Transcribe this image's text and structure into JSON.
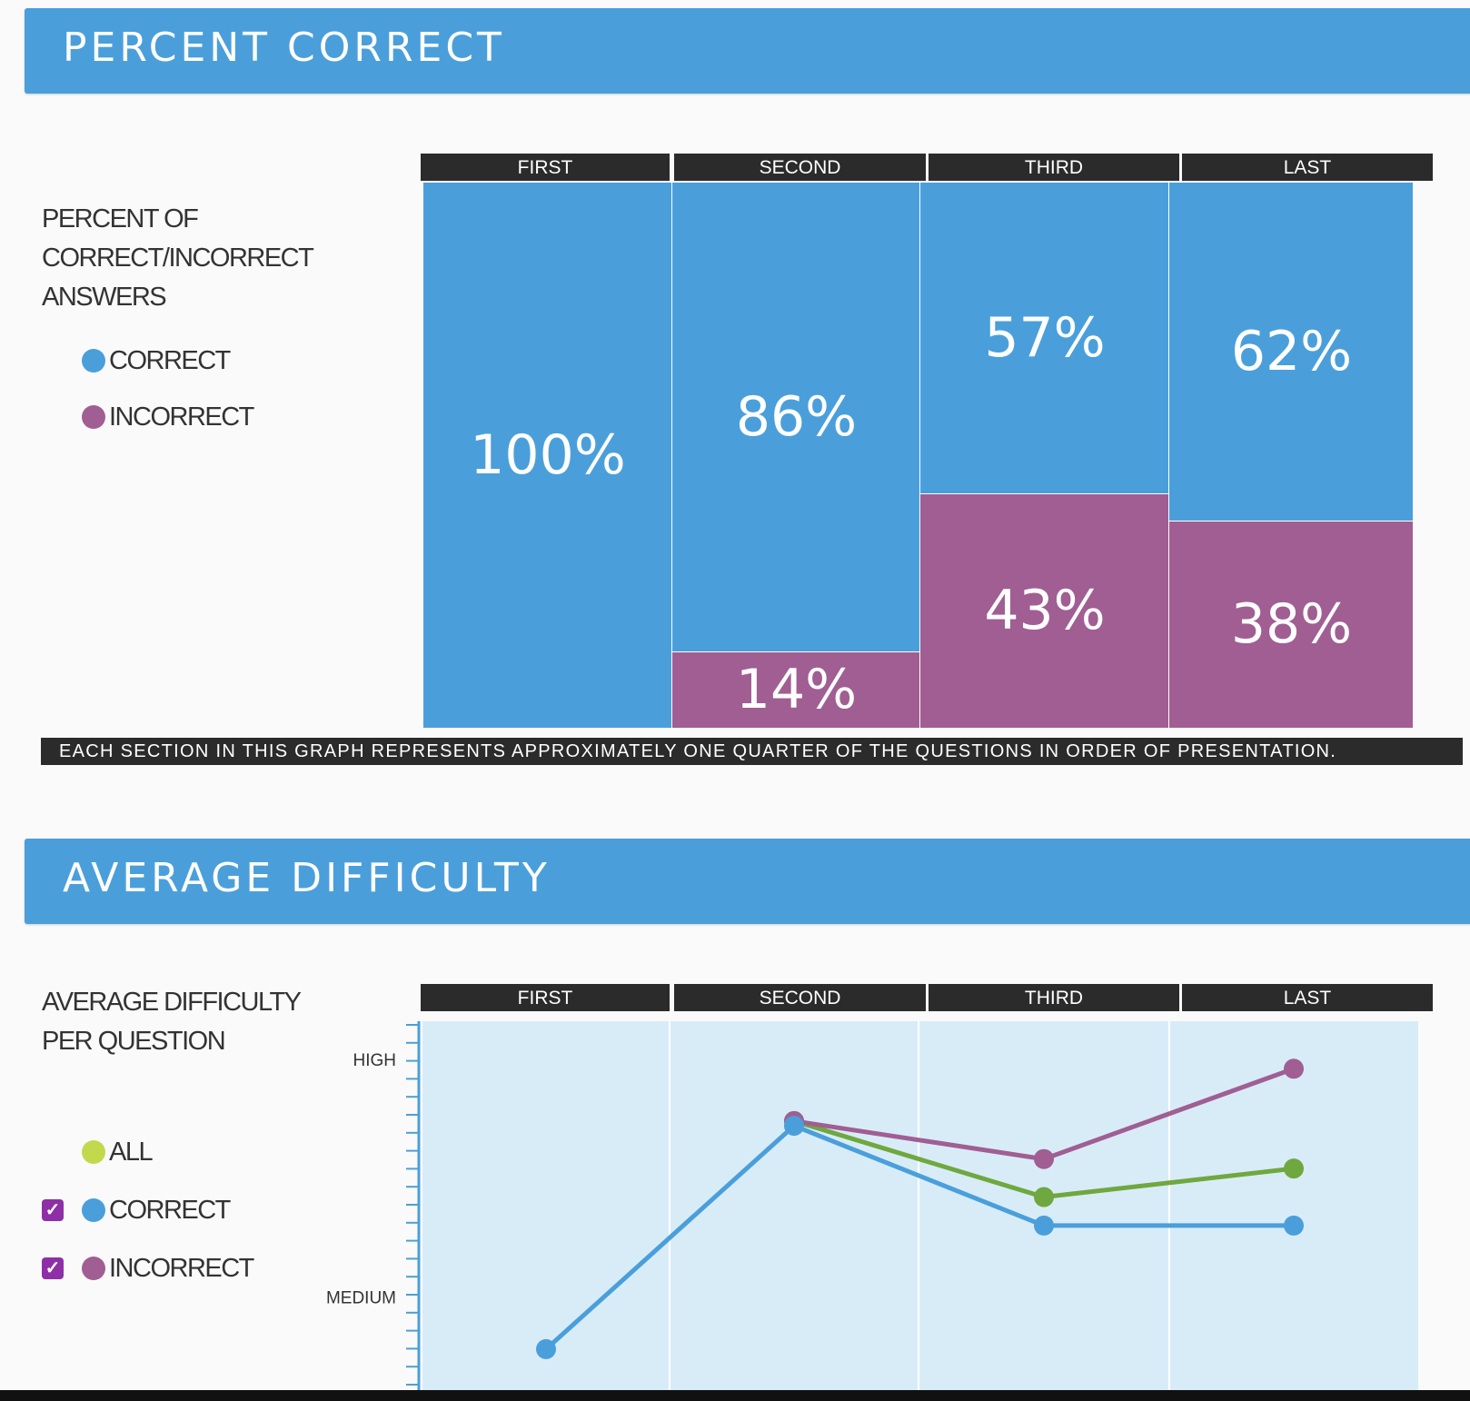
{
  "colors": {
    "banner": "#4a9fdb",
    "correct": "#4a9fdb",
    "incorrect": "#a05e93",
    "all_legend": "#c3d94d",
    "all_line": "#6fa83e",
    "plot_bg": "#d8ecf8",
    "header_bg": "#2b2b2b",
    "checkbox": "#8e2fa8"
  },
  "percent_section": {
    "title": "PERCENT CORRECT",
    "side_title_lines": [
      "PERCENT OF",
      "CORRECT/INCORRECT",
      "ANSWERS"
    ],
    "legend": [
      {
        "label": "CORRECT",
        "color_key": "correct"
      },
      {
        "label": "INCORRECT",
        "color_key": "incorrect"
      }
    ],
    "footnote": "EACH SECTION IN THIS GRAPH REPRESENTS APPROXIMATELY ONE QUARTER OF THE QUESTIONS IN ORDER OF PRESENTATION."
  },
  "difficulty_section": {
    "title": "AVERAGE DIFFICULTY",
    "side_title_lines": [
      "AVERAGE DIFFICULTY",
      "PER QUESTION"
    ],
    "legend": [
      {
        "label": "ALL",
        "color_key": "all_legend",
        "checkbox": false
      },
      {
        "label": "CORRECT",
        "color_key": "correct",
        "checkbox": true
      },
      {
        "label": "INCORRECT",
        "color_key": "incorrect",
        "checkbox": true
      }
    ]
  },
  "chart_data": [
    {
      "type": "bar",
      "stacked": true,
      "normalized": true,
      "title": "PERCENT CORRECT",
      "categories": [
        "FIRST",
        "SECOND",
        "THIRD",
        "LAST"
      ],
      "series": [
        {
          "name": "CORRECT",
          "values": [
            100,
            86,
            57,
            62
          ],
          "labels": [
            "100%",
            "86%",
            "57%",
            "62%"
          ]
        },
        {
          "name": "INCORRECT",
          "values": [
            0,
            14,
            43,
            38
          ],
          "labels": [
            "",
            "14%",
            "43%",
            "38%"
          ]
        }
      ],
      "ylim": [
        0,
        100
      ]
    },
    {
      "type": "line",
      "title": "AVERAGE DIFFICULTY",
      "categories": [
        "FIRST",
        "SECOND",
        "THIRD",
        "LAST"
      ],
      "y_tick_labels": [
        "HIGH",
        "MEDIUM"
      ],
      "y_tick_values": [
        1.0,
        0.5
      ],
      "ylim": [
        0.3,
        1.08
      ],
      "series": [
        {
          "name": "ALL",
          "color_key": "all_line",
          "values": [
            null,
            0.87,
            0.71,
            0.77
          ]
        },
        {
          "name": "CORRECT",
          "color_key": "correct",
          "values": [
            0.39,
            0.86,
            0.65,
            0.65
          ]
        },
        {
          "name": "INCORRECT",
          "color_key": "incorrect",
          "values": [
            null,
            0.87,
            0.79,
            0.98
          ]
        }
      ]
    }
  ]
}
